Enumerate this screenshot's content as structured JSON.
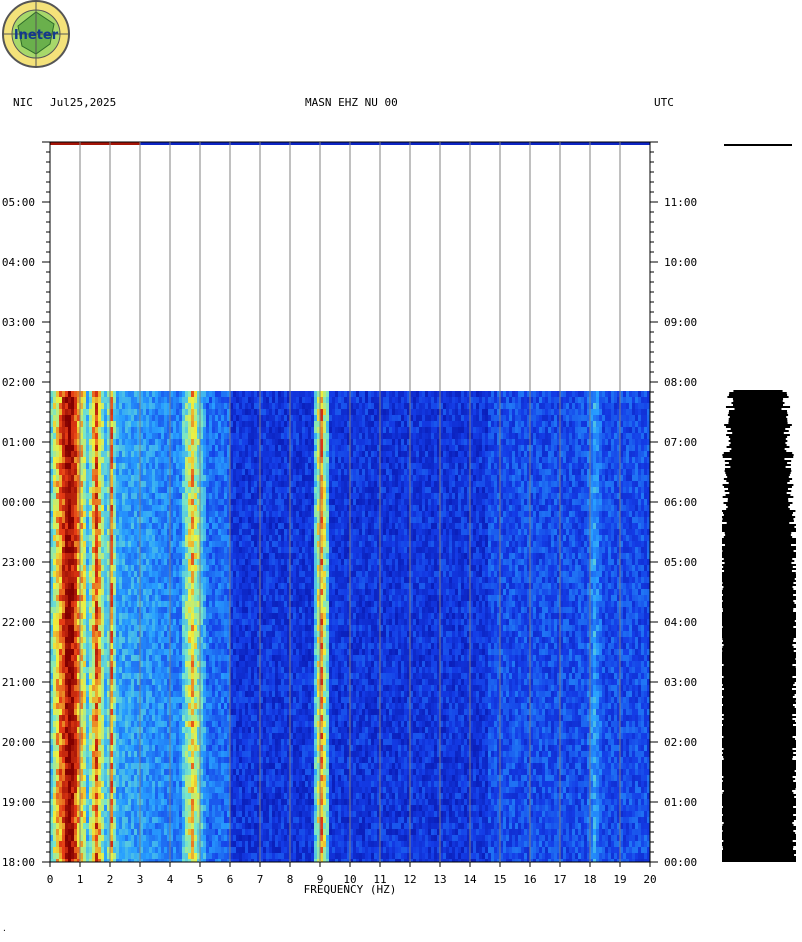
{
  "header": {
    "network": "NIC",
    "date": "Jul25,2025",
    "station": "MASN EHZ NU 00",
    "timezone": "UTC"
  },
  "logo": {
    "text": "Ineter"
  },
  "colors": {
    "background": "#ffffff",
    "spectrogram_low": "#00008f",
    "spectrogram_mid": "#1e90ff",
    "spectrogram_high": "#ffff00",
    "spectrogram_max": "#8b0000",
    "trace": "#000000",
    "grid": "#808080"
  },
  "chart_data": {
    "type": "heatmap",
    "title": "MASN EHZ NU 00",
    "xlabel": "FREQUENCY (HZ)",
    "x_ticks": [
      "0",
      "1",
      "2",
      "3",
      "4",
      "5",
      "6",
      "7",
      "8",
      "9",
      "10",
      "11",
      "12",
      "13",
      "14",
      "15",
      "16",
      "17",
      "18",
      "19",
      "20"
    ],
    "xlim": [
      0,
      20
    ],
    "left_axis_ticks": [
      "18:00",
      "19:00",
      "20:00",
      "21:00",
      "22:00",
      "23:00",
      "00:00",
      "01:00",
      "02:00",
      "03:00",
      "04:00",
      "05:00"
    ],
    "right_axis_ticks": [
      "00:00",
      "01:00",
      "02:00",
      "03:00",
      "04:00",
      "05:00",
      "06:00",
      "07:00",
      "08:00",
      "09:00",
      "10:00",
      "11:00"
    ],
    "y_range_hours": [
      0,
      12
    ],
    "data_end_hour": 7.85,
    "strong_bands_hz": [
      {
        "center": 0.6,
        "width": 0.6,
        "level": 1.0
      },
      {
        "center": 1.5,
        "width": 0.3,
        "level": 0.85
      },
      {
        "center": 2.0,
        "width": 0.15,
        "level": 0.8
      },
      {
        "center": 4.7,
        "width": 0.4,
        "level": 0.75
      },
      {
        "center": 9.0,
        "width": 0.25,
        "level": 0.8
      },
      {
        "center": 18.1,
        "width": 0.3,
        "level": 0.45
      }
    ],
    "grid": true
  }
}
